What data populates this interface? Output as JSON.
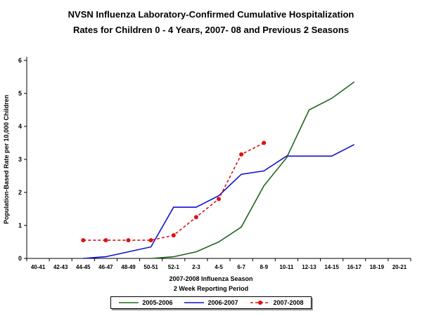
{
  "title": {
    "line1": "NVSN Influenza Laboratory-Confirmed Cumulative Hospitalization",
    "line2": "Rates for Children 0 - 4 Years, 2007- 08 and Previous 2 Seasons"
  },
  "chart_data": {
    "type": "line",
    "title": "NVSN Influenza Laboratory-Confirmed Cumulative Hospitalization Rates for Children 0 - 4 Years, 2007-08 and Previous 2 Seasons",
    "categories": [
      "40-41",
      "42-43",
      "44-45",
      "46-47",
      "48-49",
      "50-51",
      "52-1",
      "2-3",
      "4-5",
      "6-7",
      "8-9",
      "10-11",
      "12-13",
      "14-15",
      "16-17",
      "18-19",
      "20-21"
    ],
    "series": [
      {
        "name": "2005-2006",
        "color": "#226622",
        "dash": null,
        "marker": false,
        "values": [
          null,
          null,
          null,
          null,
          null,
          0.0,
          0.05,
          0.2,
          0.5,
          0.95,
          2.2,
          3.05,
          4.5,
          4.85,
          5.35,
          null,
          null
        ]
      },
      {
        "name": "2006-2007",
        "color": "#1111cc",
        "dash": null,
        "marker": false,
        "values": [
          null,
          null,
          0.0,
          0.05,
          0.2,
          0.35,
          1.55,
          1.55,
          1.9,
          2.55,
          2.65,
          3.1,
          3.1,
          3.1,
          3.45,
          null,
          null
        ]
      },
      {
        "name": "2007-2008",
        "color": "#dd1111",
        "dash": "4,3",
        "marker": true,
        "values": [
          null,
          null,
          0.55,
          0.55,
          0.55,
          0.55,
          0.7,
          1.25,
          1.8,
          3.15,
          3.5,
          null,
          null,
          null,
          null,
          null,
          null
        ]
      }
    ],
    "ylabel": "Population-Based Rate per 10,000 Children",
    "xlabel_line1": "2007-2008 Influenza Season",
    "xlabel_line2": "2 Week Reporting Period",
    "ylim": [
      0,
      6
    ],
    "yticks": [
      0,
      1,
      2,
      3,
      4,
      5,
      6
    ],
    "grid": false,
    "legend_position": "bottom"
  }
}
